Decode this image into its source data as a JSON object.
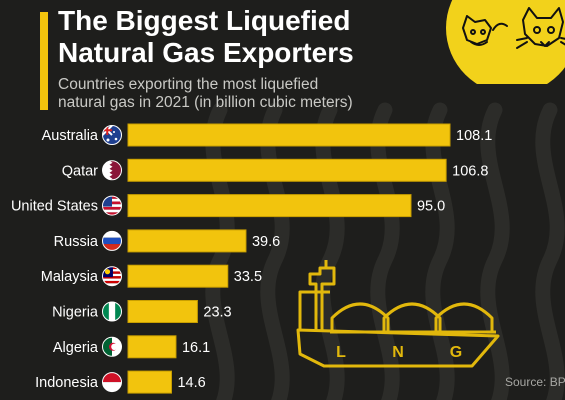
{
  "header": {
    "title_line1": "The Biggest Liquefied",
    "title_line2": "Natural Gas Exporters",
    "subtitle_line1": "Countries exporting the most liquefied",
    "subtitle_line2": "natural gas in 2021 (in billion cubic meters)"
  },
  "ship": {
    "letters": [
      "L",
      "N",
      "G"
    ]
  },
  "source": "Source: BP",
  "colors": {
    "background": "#1e1e1c",
    "bar": "#f2c40d",
    "bar_edge": "#c99f00",
    "text": "#ffffff",
    "logo": "#f2d21b"
  },
  "chart_data": {
    "type": "bar",
    "orientation": "horizontal",
    "title": "The Biggest Liquefied Natural Gas Exporters",
    "subtitle": "Countries exporting the most liquefied natural gas in 2021 (in billion cubic meters)",
    "categories": [
      "Australia",
      "Qatar",
      "United States",
      "Russia",
      "Malaysia",
      "Nigeria",
      "Algeria",
      "Indonesia"
    ],
    "values": [
      108.1,
      106.8,
      95.0,
      39.6,
      33.5,
      23.3,
      16.1,
      14.6
    ],
    "value_labels": [
      "108.1",
      "106.8",
      "95.0",
      "39.6",
      "33.5",
      "23.3",
      "16.1",
      "14.6"
    ],
    "flags": [
      "australia-flag",
      "qatar-flag",
      "usa-flag",
      "russia-flag",
      "malaysia-flag",
      "nigeria-flag",
      "algeria-flag",
      "indonesia-flag"
    ],
    "xlim": [
      0,
      108.1
    ],
    "grid": false,
    "legend": "none"
  }
}
